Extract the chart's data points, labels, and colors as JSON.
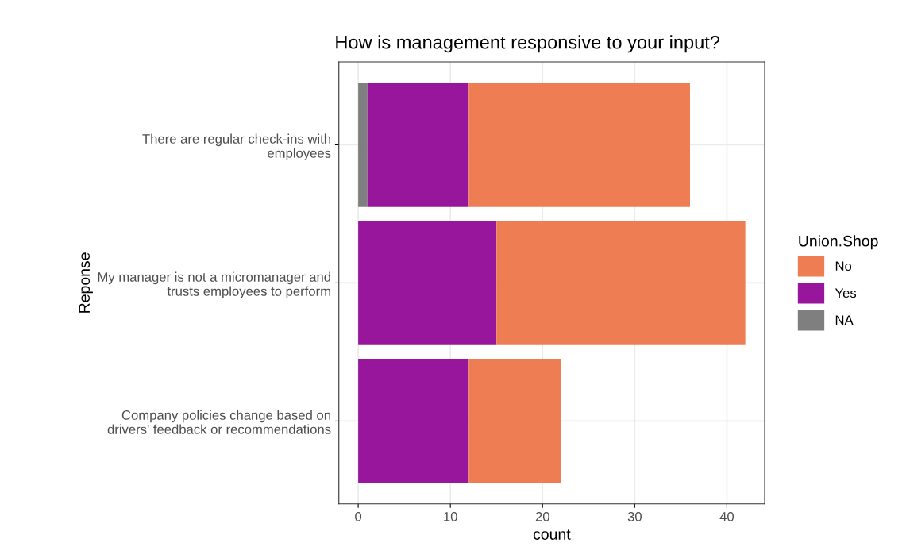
{
  "chart_data": {
    "type": "bar",
    "orientation": "horizontal",
    "stacked": true,
    "title": "How is management responsive to your input?",
    "xlabel": "count",
    "ylabel": "Reponse",
    "legend_title": "Union.Shop",
    "legend": "right",
    "grid": true,
    "categories": [
      "There are regular check-ins with\nemployees",
      "My manager is not a micromanager and\ntrusts employees to perform",
      "Company policies change based on\ndrivers' feedback or recommendations"
    ],
    "series": [
      {
        "name": "NA",
        "color": "#7f7f7f",
        "values": [
          1,
          null,
          null
        ]
      },
      {
        "name": "Yes",
        "color": "#97169c",
        "values": [
          11,
          15,
          12
        ]
      },
      {
        "name": "No",
        "color": "#ef7d54",
        "values": [
          24,
          27,
          10
        ]
      }
    ],
    "xlim": [
      -2.1,
      44.1
    ],
    "xticks": [
      0,
      10,
      20,
      30,
      40
    ]
  }
}
